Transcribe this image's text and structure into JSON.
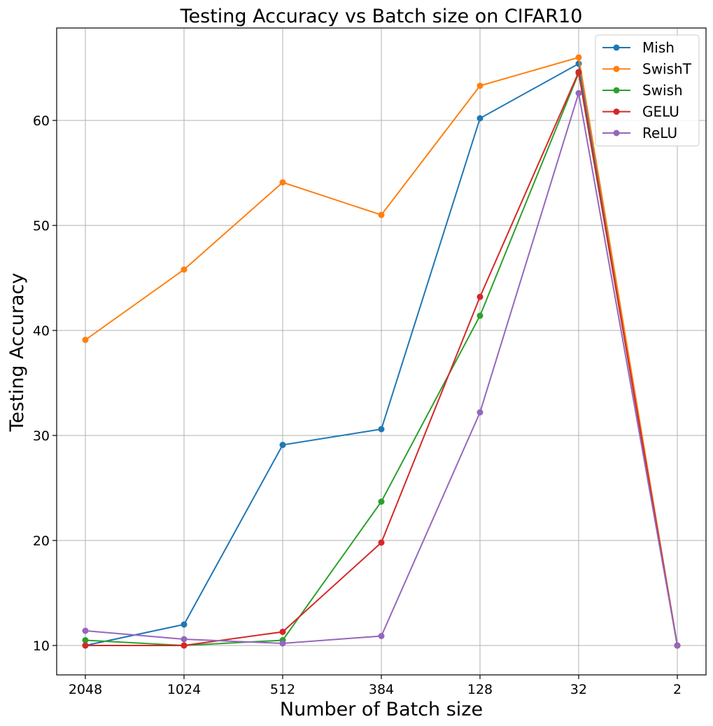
{
  "chart_data": {
    "type": "line",
    "title": "Testing Accuracy vs Batch size on CIFAR10",
    "xlabel": "Number of Batch size",
    "ylabel": "Testing Accuracy",
    "categories": [
      "2048",
      "1024",
      "512",
      "384",
      "128",
      "32",
      "2"
    ],
    "ylim": [
      7.2,
      68.8
    ],
    "yticks": [
      10,
      20,
      30,
      40,
      50,
      60
    ],
    "grid": true,
    "legend_position": "top-right",
    "series": [
      {
        "name": "Mish",
        "color": "#1f77b4",
        "values": [
          10.0,
          12.0,
          29.1,
          30.6,
          60.2,
          65.4,
          10.0
        ]
      },
      {
        "name": "SwishT",
        "color": "#ff7f0e",
        "values": [
          39.1,
          45.8,
          54.1,
          51.0,
          63.3,
          66.0,
          10.0
        ]
      },
      {
        "name": "Swish",
        "color": "#2ca02c",
        "values": [
          10.5,
          10.0,
          10.5,
          23.7,
          41.4,
          64.5,
          10.0
        ]
      },
      {
        "name": "GELU",
        "color": "#d62728",
        "values": [
          10.0,
          10.0,
          11.3,
          19.8,
          43.2,
          64.6,
          10.0
        ]
      },
      {
        "name": "ReLU",
        "color": "#9467bd",
        "values": [
          11.4,
          10.6,
          10.2,
          10.9,
          32.2,
          62.6,
          10.0
        ]
      }
    ]
  }
}
